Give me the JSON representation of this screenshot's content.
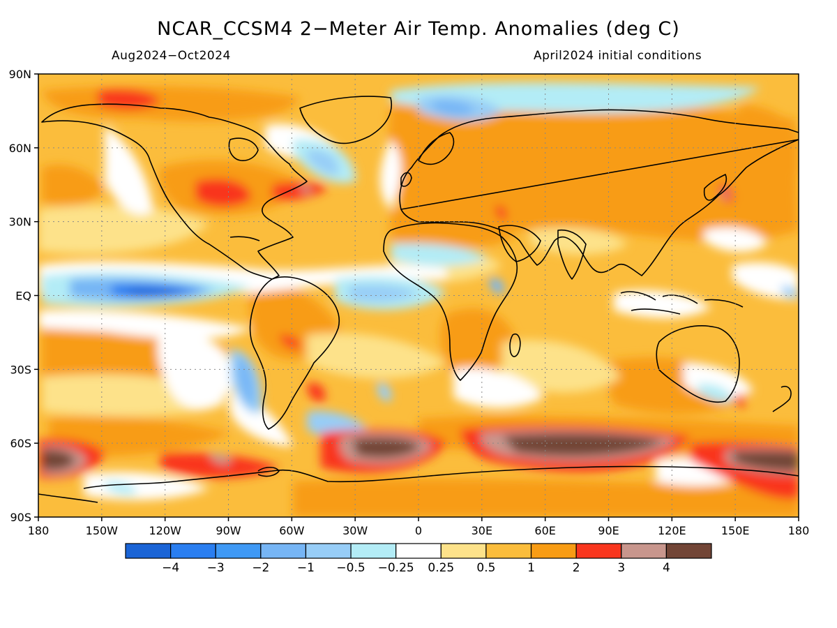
{
  "title": "NCAR_CCSM4 2−Meter Air Temp. Anomalies (deg C)",
  "period": "Aug2024−Oct2024",
  "init": "April2024 initial conditions",
  "map": {
    "lat_ticks": [
      "90N",
      "60N",
      "30N",
      "EQ",
      "30S",
      "60S",
      "90S"
    ],
    "lon_ticks": [
      "180",
      "150W",
      "120W",
      "90W",
      "60W",
      "30W",
      "0",
      "30E",
      "60E",
      "90E",
      "120E",
      "150E",
      "180"
    ]
  },
  "colorbar": {
    "colors": [
      "#1a64d6",
      "#2a7ef0",
      "#3f99f5",
      "#76b5f5",
      "#97cdf7",
      "#b3ecf6",
      "#ffffff",
      "#fde28a",
      "#fbbd3c",
      "#f89c14",
      "#f9361e",
      "#c8968d",
      "#724536"
    ],
    "labels": [
      "−4",
      "−3",
      "−2",
      "−1",
      "−0.5",
      "−0.25",
      "0.25",
      "0.5",
      "1",
      "2",
      "3",
      "4"
    ]
  }
}
